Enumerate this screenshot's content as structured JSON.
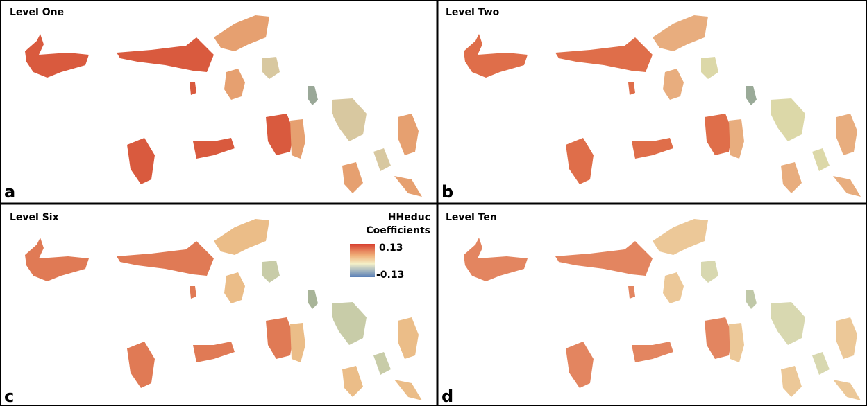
{
  "panels": [
    {
      "title": "Level One",
      "letter": "a"
    },
    {
      "title": "Level Two",
      "letter": "b"
    },
    {
      "title": "Level Six",
      "letter": "c"
    },
    {
      "title": "Level Ten",
      "letter": "d"
    }
  ],
  "legend": {
    "title_lines": [
      "HHeduc",
      "Coefficients"
    ],
    "max": 0.13,
    "min": -0.13
  }
}
